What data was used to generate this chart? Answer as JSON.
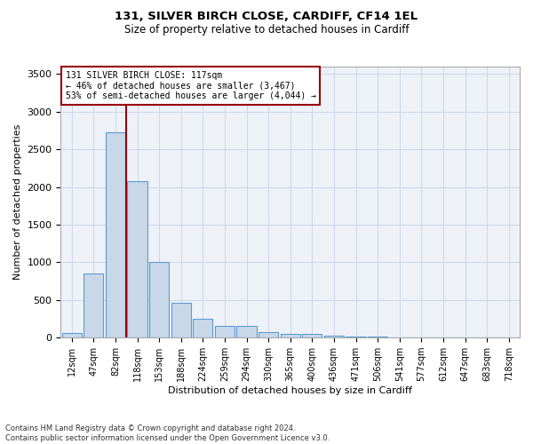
{
  "title_line1": "131, SILVER BIRCH CLOSE, CARDIFF, CF14 1EL",
  "title_line2": "Size of property relative to detached houses in Cardiff",
  "xlabel": "Distribution of detached houses by size in Cardiff",
  "ylabel": "Number of detached properties",
  "categories": [
    "12sqm",
    "47sqm",
    "82sqm",
    "118sqm",
    "153sqm",
    "188sqm",
    "224sqm",
    "259sqm",
    "294sqm",
    "330sqm",
    "365sqm",
    "400sqm",
    "436sqm",
    "471sqm",
    "506sqm",
    "541sqm",
    "577sqm",
    "612sqm",
    "647sqm",
    "683sqm",
    "718sqm"
  ],
  "values": [
    60,
    850,
    2730,
    2080,
    1010,
    460,
    250,
    155,
    155,
    70,
    55,
    45,
    25,
    15,
    10,
    5,
    3,
    2,
    1,
    1,
    1
  ],
  "bar_color": "#c8d8e8",
  "bar_edge_color": "#5b9bd5",
  "grid_color": "#d0d8e8",
  "background_color": "#eef2f8",
  "marker_line_color": "#990000",
  "annotation_line1": "131 SILVER BIRCH CLOSE: 117sqm",
  "annotation_line2": "← 46% of detached houses are smaller (3,467)",
  "annotation_line3": "53% of semi-detached houses are larger (4,044) →",
  "annotation_box_color": "#990000",
  "ylim": [
    0,
    3600
  ],
  "yticks": [
    0,
    500,
    1000,
    1500,
    2000,
    2500,
    3000,
    3500
  ],
  "footnote_line1": "Contains HM Land Registry data © Crown copyright and database right 2024.",
  "footnote_line2": "Contains public sector information licensed under the Open Government Licence v3.0."
}
